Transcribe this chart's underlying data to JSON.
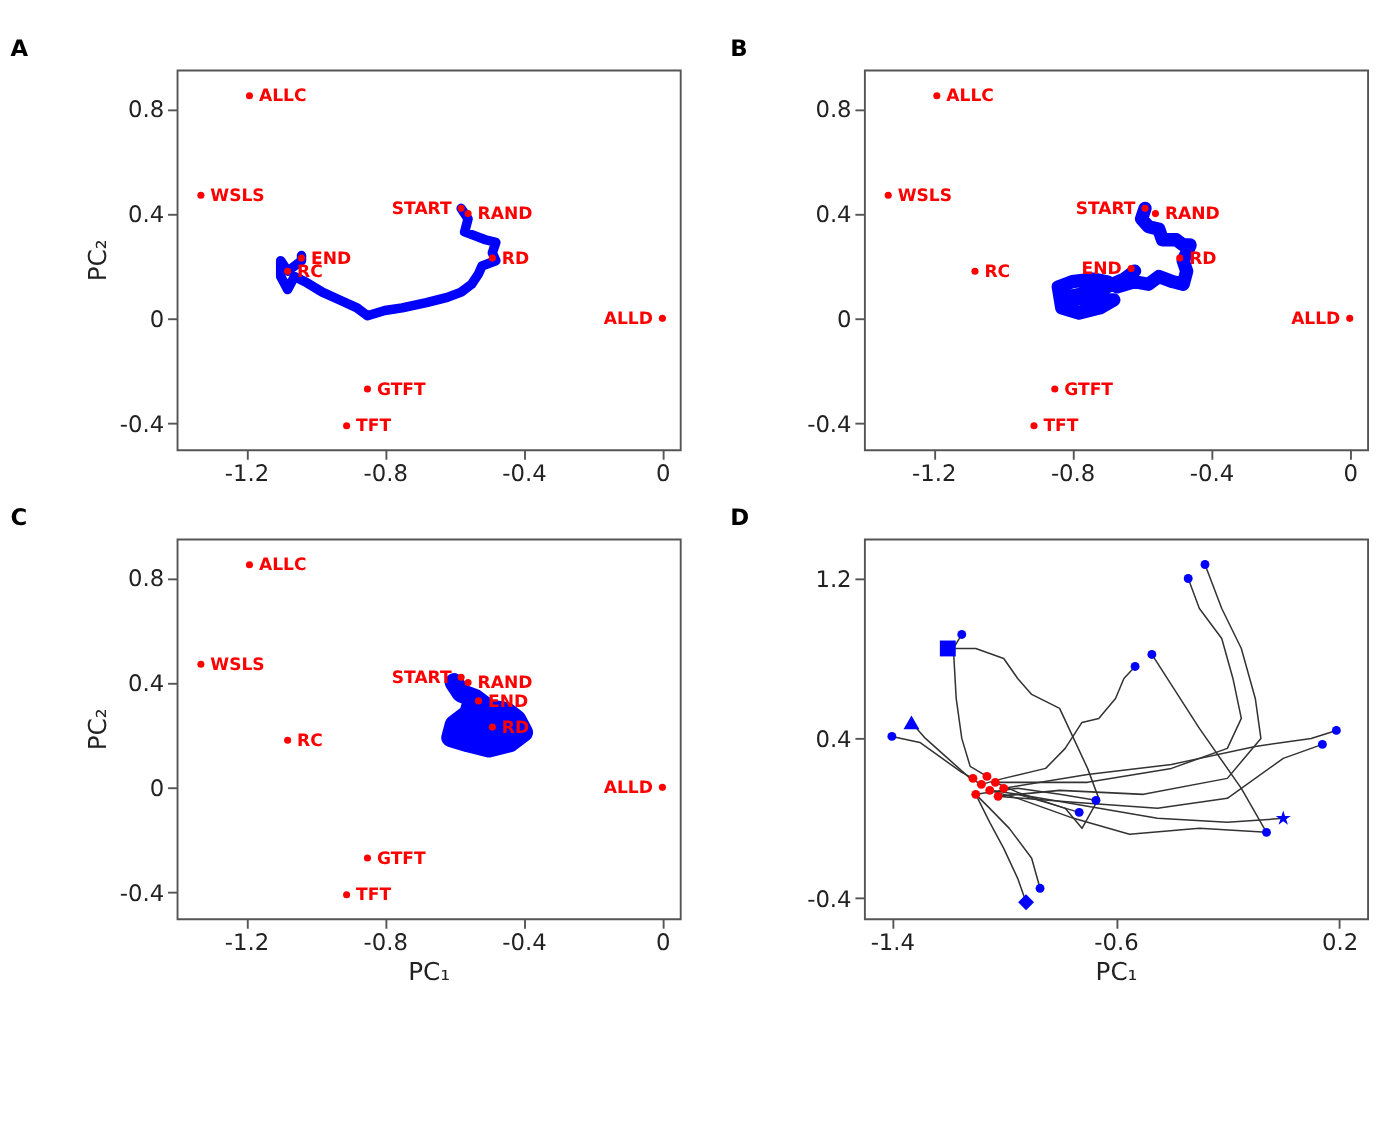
{
  "chart_data": [
    {
      "type": "scatter",
      "title": "A",
      "ylabel": "PC₂",
      "xlim": [
        -1.4,
        0.05
      ],
      "ylim": [
        -0.5,
        0.95
      ],
      "xticks": [
        -1.2,
        -0.8,
        -0.4,
        0
      ],
      "yticks": [
        -0.4,
        0,
        0.4,
        0.8
      ],
      "series": [
        {
          "type": "line",
          "color": "#0000ff",
          "x": [
            -0.58,
            -0.56,
            -0.57,
            -0.53,
            -0.51,
            -0.48,
            -0.49,
            -0.48,
            -0.52,
            -0.53,
            -0.55,
            -0.58,
            -0.62,
            -0.68,
            -0.75,
            -0.8,
            -0.85,
            -0.88,
            -0.93,
            -0.98,
            -1.03,
            -1.06,
            -1.08,
            -1.1,
            -1.1,
            -1.08,
            -1.06,
            -1.04,
            -1.04
          ],
          "values": [
            0.42,
            0.38,
            0.33,
            0.31,
            0.3,
            0.29,
            0.25,
            0.22,
            0.2,
            0.17,
            0.13,
            0.1,
            0.08,
            0.06,
            0.04,
            0.03,
            0.01,
            0.04,
            0.07,
            0.1,
            0.14,
            0.16,
            0.11,
            0.16,
            0.22,
            0.18,
            0.2,
            0.22,
            0.24
          ]
        },
        {
          "marker": "circle",
          "color": "#ff0000",
          "x": [
            -1.19,
            -1.33,
            -0.58,
            -0.56,
            -0.49,
            -1.04,
            -1.08,
            0,
            -0.85,
            -0.91
          ],
          "values": [
            0.85,
            0.47,
            0.42,
            0.4,
            0.23,
            0.23,
            0.18,
            0,
            -0.27,
            -0.41
          ]
        }
      ],
      "annotations": [
        {
          "text": "ALLC",
          "x": -1.19,
          "y": 0.85
        },
        {
          "text": "WSLS",
          "x": -1.33,
          "y": 0.47
        },
        {
          "text": "START",
          "x": -0.58,
          "y": 0.42
        },
        {
          "text": "RAND",
          "x": -0.56,
          "y": 0.4
        },
        {
          "text": "RD",
          "x": -0.49,
          "y": 0.23
        },
        {
          "text": "END",
          "x": -1.04,
          "y": 0.23
        },
        {
          "text": "RC",
          "x": -1.08,
          "y": 0.18
        },
        {
          "text": "ALLD",
          "x": 0,
          "y": 0
        },
        {
          "text": "GTFT",
          "x": -0.85,
          "y": -0.27
        },
        {
          "text": "TFT",
          "x": -0.91,
          "y": -0.41
        }
      ]
    },
    {
      "type": "scatter",
      "title": "B",
      "xlim": [
        -1.4,
        0.05
      ],
      "ylim": [
        -0.5,
        0.95
      ],
      "xticks": [
        -1.2,
        -0.8,
        -0.4,
        0
      ],
      "yticks": [
        -0.4,
        0,
        0.4,
        0.8
      ],
      "series": [
        {
          "type": "line",
          "color": "#0000ff",
          "x": [
            -0.59,
            -0.6,
            -0.58,
            -0.55,
            -0.54,
            -0.5,
            -0.48,
            -0.46,
            -0.48,
            -0.47,
            -0.48,
            -0.51,
            -0.55,
            -0.58,
            -0.62,
            -0.67,
            -0.7,
            -0.74,
            -0.8,
            -0.84,
            -0.83,
            -0.78,
            -0.72,
            -0.68,
            -0.76,
            -0.82,
            -0.75,
            -0.7,
            -0.65,
            -0.62
          ],
          "values": [
            0.42,
            0.38,
            0.35,
            0.34,
            0.3,
            0.3,
            0.28,
            0.28,
            0.22,
            0.18,
            0.13,
            0.14,
            0.16,
            0.13,
            0.14,
            0.12,
            0.14,
            0.15,
            0.14,
            0.12,
            0.04,
            0.02,
            0.04,
            0.07,
            0.07,
            0.08,
            0.1,
            0.12,
            0.15,
            0.18
          ]
        },
        {
          "marker": "circle",
          "color": "#ff0000",
          "x": [
            -1.19,
            -1.33,
            -0.59,
            -0.56,
            -0.49,
            -0.63,
            -1.08,
            0,
            -0.85,
            -0.91
          ],
          "values": [
            0.85,
            0.47,
            0.42,
            0.4,
            0.23,
            0.19,
            0.18,
            0,
            -0.27,
            -0.41
          ]
        }
      ],
      "annotations": [
        {
          "text": "ALLC",
          "x": -1.19,
          "y": 0.85
        },
        {
          "text": "WSLS",
          "x": -1.33,
          "y": 0.47
        },
        {
          "text": "START",
          "x": -0.59,
          "y": 0.42
        },
        {
          "text": "RAND",
          "x": -0.56,
          "y": 0.4
        },
        {
          "text": "RD",
          "x": -0.49,
          "y": 0.23
        },
        {
          "text": "END",
          "x": -0.63,
          "y": 0.19
        },
        {
          "text": "RC",
          "x": -1.08,
          "y": 0.18
        },
        {
          "text": "ALLD",
          "x": 0,
          "y": 0
        },
        {
          "text": "GTFT",
          "x": -0.85,
          "y": -0.27
        },
        {
          "text": "TFT",
          "x": -0.91,
          "y": -0.41
        }
      ]
    },
    {
      "type": "scatter",
      "title": "C",
      "xlabel": "PC₁",
      "ylabel": "PC₂",
      "xlim": [
        -1.4,
        0.05
      ],
      "ylim": [
        -0.5,
        0.95
      ],
      "xticks": [
        -1.2,
        -0.8,
        -0.4,
        0
      ],
      "yticks": [
        -0.4,
        0,
        0.4,
        0.8
      ],
      "series": [
        {
          "type": "line",
          "color": "#0000ff",
          "x": [
            -0.6,
            -0.58,
            -0.54,
            -0.5,
            -0.45,
            -0.42,
            -0.4,
            -0.44,
            -0.5,
            -0.56,
            -0.61,
            -0.6,
            -0.56,
            -0.5,
            -0.46,
            -0.52,
            -0.57,
            -0.55,
            -0.53
          ],
          "values": [
            0.4,
            0.36,
            0.34,
            0.3,
            0.29,
            0.26,
            0.21,
            0.17,
            0.15,
            0.17,
            0.19,
            0.24,
            0.28,
            0.26,
            0.22,
            0.2,
            0.23,
            0.32,
            0.33
          ]
        },
        {
          "marker": "circle",
          "color": "#ff0000",
          "x": [
            -1.19,
            -1.33,
            -0.58,
            -0.56,
            -0.49,
            -0.53,
            -1.08,
            0,
            -0.85,
            -0.91
          ],
          "values": [
            0.85,
            0.47,
            0.42,
            0.4,
            0.23,
            0.33,
            0.18,
            0,
            -0.27,
            -0.41
          ]
        }
      ],
      "annotations": [
        {
          "text": "ALLC",
          "x": -1.19,
          "y": 0.85
        },
        {
          "text": "WSLS",
          "x": -1.33,
          "y": 0.47
        },
        {
          "text": "START",
          "x": -0.58,
          "y": 0.42
        },
        {
          "text": "RAND",
          "x": -0.56,
          "y": 0.4
        },
        {
          "text": "RD",
          "x": -0.49,
          "y": 0.23
        },
        {
          "text": "END",
          "x": -0.53,
          "y": 0.33
        },
        {
          "text": "RC",
          "x": -1.08,
          "y": 0.18
        },
        {
          "text": "ALLD",
          "x": 0,
          "y": 0
        },
        {
          "text": "GTFT",
          "x": -0.85,
          "y": -0.27
        },
        {
          "text": "TFT",
          "x": -0.91,
          "y": -0.41
        }
      ]
    },
    {
      "type": "line",
      "title": "D",
      "xlabel": "PC₁",
      "xlim": [
        -1.5,
        0.3
      ],
      "ylim": [
        -0.5,
        1.4
      ],
      "xticks": [
        -1.4,
        -0.6,
        0.2
      ],
      "yticks": [
        -0.4,
        0.4,
        1.2
      ],
      "series": [
        {
          "color": "#333333",
          "x": [
            -1.4,
            -1.3,
            -1.22,
            -1.15,
            -1.11
          ],
          "values": [
            0.41,
            0.38,
            0.3,
            0.23,
            0.2
          ]
        },
        {
          "color": "#333333",
          "x": [
            -1.33,
            -1.28,
            -1.2,
            -1.12,
            -1.08
          ],
          "values": [
            0.48,
            0.4,
            0.3,
            0.2,
            0.17
          ]
        },
        {
          "color": "#333333",
          "x": [
            -1.2,
            -1.1,
            -1.0,
            -0.95,
            -0.9,
            -0.8,
            -0.75,
            -0.7,
            -0.66,
            -0.72,
            -0.78,
            -0.95,
            -1.03
          ],
          "values": [
            0.85,
            0.85,
            0.8,
            0.7,
            0.62,
            0.55,
            0.4,
            0.25,
            0.1,
            -0.05,
            0.05,
            0.13,
            0.18
          ]
        },
        {
          "color": "#333333",
          "x": [
            -1.15,
            -1.18,
            -1.17,
            -1.15,
            -1.12,
            -1.06
          ],
          "values": [
            0.92,
            0.85,
            0.6,
            0.4,
            0.26,
            0.21
          ]
        },
        {
          "color": "#333333",
          "x": [
            -0.53,
            -0.57,
            -0.6,
            -0.66,
            -0.72,
            -0.78,
            -0.85,
            -1.0,
            -1.08
          ],
          "values": [
            0.76,
            0.7,
            0.6,
            0.5,
            0.48,
            0.35,
            0.25,
            0.2,
            0.17
          ]
        },
        {
          "color": "#333333",
          "x": [
            -0.47,
            -0.3,
            -0.15,
            -0.06
          ],
          "values": [
            0.82,
            0.45,
            0.15,
            -0.07
          ]
        },
        {
          "color": "#333333",
          "x": [
            -0.34,
            -0.3,
            -0.22,
            -0.18,
            -0.15,
            -0.2,
            -0.4,
            -0.7,
            -1.03
          ],
          "values": [
            1.2,
            1.05,
            0.9,
            0.7,
            0.5,
            0.35,
            0.25,
            0.18,
            0.18
          ]
        },
        {
          "color": "#333333",
          "x": [
            -0.28,
            -0.22,
            -0.15,
            -0.1,
            -0.08,
            -0.2,
            -0.5,
            -0.8,
            -1.02
          ],
          "values": [
            1.27,
            1.05,
            0.85,
            0.6,
            0.4,
            0.2,
            0.12,
            0.14,
            0.11
          ]
        },
        {
          "color": "#333333",
          "x": [
            0.19,
            0.1,
            -0.1,
            -0.4,
            -0.7,
            -1.0
          ],
          "values": [
            0.44,
            0.4,
            0.36,
            0.27,
            0.22,
            0.15
          ]
        },
        {
          "color": "#333333",
          "x": [
            0.14,
            0.0,
            -0.2,
            -0.45,
            -0.75,
            -1.02
          ],
          "values": [
            0.37,
            0.3,
            0.1,
            0.05,
            0.08,
            0.11
          ]
        },
        {
          "color": "#333333",
          "x": [
            0.0,
            -0.2,
            -0.45,
            -0.7,
            -0.95,
            -1.05
          ],
          "values": [
            0.0,
            -0.02,
            0.0,
            0.06,
            0.12,
            0.14
          ]
        },
        {
          "color": "#333333",
          "x": [
            -0.06,
            -0.3,
            -0.55,
            -0.75,
            -0.95,
            -1.05
          ],
          "values": [
            -0.07,
            -0.05,
            -0.08,
            0.0,
            0.1,
            0.14
          ]
        },
        {
          "color": "#333333",
          "x": [
            -0.67,
            -0.8,
            -0.95,
            -1.1
          ],
          "values": [
            0.09,
            0.12,
            0.15,
            0.12
          ]
        },
        {
          "color": "#333333",
          "x": [
            -0.73,
            -0.85,
            -0.95,
            -1.02
          ],
          "values": [
            0.03,
            0.08,
            0.12,
            0.11
          ]
        },
        {
          "color": "#333333",
          "x": [
            -0.87,
            -0.9,
            -0.98,
            -1.05,
            -1.1
          ],
          "values": [
            -0.35,
            -0.2,
            -0.05,
            0.05,
            0.12
          ]
        },
        {
          "color": "#333333",
          "x": [
            -0.92,
            -0.95,
            -1.0,
            -1.05,
            -1.1
          ],
          "values": [
            -0.42,
            -0.3,
            -0.15,
            -0.02,
            0.12
          ]
        },
        {
          "type": "scatter",
          "marker": "circle",
          "color": "#0000ff",
          "x": [
            -1.4,
            -1.15,
            -0.53,
            -0.47,
            -0.34,
            -0.28,
            0.19,
            0.14,
            -0.06,
            -0.67,
            -0.73,
            -0.87
          ],
          "values": [
            0.41,
            0.92,
            0.76,
            0.82,
            1.2,
            1.27,
            0.44,
            0.37,
            -0.07,
            0.09,
            0.03,
            -0.35
          ]
        },
        {
          "type": "scatter",
          "marker": "triangle",
          "color": "#0000ff",
          "x": [
            -1.33
          ],
          "values": [
            0.48
          ]
        },
        {
          "type": "scatter",
          "marker": "square",
          "color": "#0000ff",
          "x": [
            -1.2
          ],
          "values": [
            0.85
          ]
        },
        {
          "type": "scatter",
          "marker": "diamond",
          "color": "#0000ff",
          "x": [
            -0.92
          ],
          "values": [
            -0.42
          ]
        },
        {
          "type": "scatter",
          "marker": "star",
          "color": "#0000ff",
          "x": [
            0.0
          ],
          "values": [
            0.0
          ]
        },
        {
          "type": "scatter",
          "marker": "circle",
          "color": "#ff0000",
          "x": [
            -1.11,
            -1.08,
            -1.05,
            -1.02,
            -1.1,
            -1.06,
            -1.03,
            -1.0
          ],
          "values": [
            0.2,
            0.17,
            0.14,
            0.11,
            0.12,
            0.21,
            0.18,
            0.15
          ]
        }
      ]
    }
  ]
}
